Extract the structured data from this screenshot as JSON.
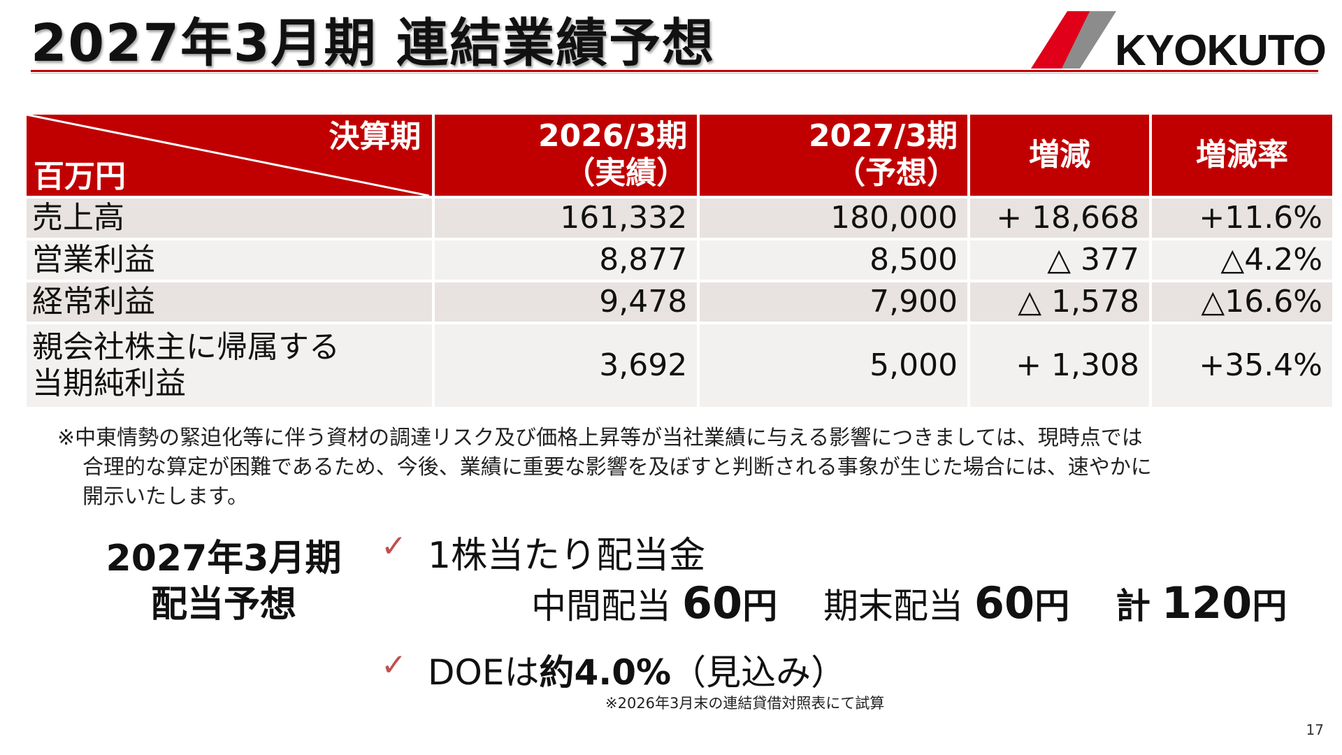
{
  "header": {
    "title": "2027年3月期 連結業績予想",
    "logo_text": "KYOKUTO"
  },
  "table": {
    "corner_top": "決算期",
    "corner_bottom": "百万円",
    "col_2026_line1": "2026/3期",
    "col_2026_line2": "（実績）",
    "col_2027_line1": "2027/3期",
    "col_2027_line2": "（予想）",
    "col_change": "増減",
    "col_rate": "増減率",
    "rows": [
      {
        "label": "売上高",
        "actual": "161,332",
        "forecast": "180,000",
        "change": "+ 18,668",
        "rate": "+11.6%"
      },
      {
        "label": "営業利益",
        "actual": "8,877",
        "forecast": "8,500",
        "change": "△ 377",
        "rate": "△4.2%"
      },
      {
        "label": "経常利益",
        "actual": "9,478",
        "forecast": "7,900",
        "change": "△ 1,578",
        "rate": "△16.6%"
      },
      {
        "label_line1": "親会社株主に帰属する",
        "label_line2": "当期純利益",
        "actual": "3,692",
        "forecast": "5,000",
        "change": "+ 1,308",
        "rate": "+35.4%"
      }
    ]
  },
  "note": {
    "line1": "※中東情勢の緊迫化等に伴う資材の調達リスク及び価格上昇等が当社業績に与える影響につきましては、現時点では",
    "line2": "合理的な算定が困難であるため、今後、業績に重要な影響を及ぼすと判断される事象が生じた場合には、速やかに",
    "line3": "開示いたします。"
  },
  "dividend": {
    "title_line1": "2027年3月期",
    "title_line2": "配当予想",
    "check_mark": "✓",
    "bullet1": "1株当たり配当金",
    "interim_label": "中間配当",
    "interim_value": "60",
    "yen": "円",
    "yearend_label": "期末配当",
    "yearend_value": "60",
    "total_label": "計",
    "total_value": "120",
    "doe_prefix": "DOEは",
    "doe_value": "約4.0%",
    "doe_suffix": "（見込み）",
    "footnote": "※2026年3月末の連結貸借対照表にて試算"
  },
  "page_number": "17",
  "colors": {
    "accent": "#c00000",
    "row_odd": "#e8e3e0",
    "row_even": "#f3f1ef",
    "check": "#c0504d"
  }
}
